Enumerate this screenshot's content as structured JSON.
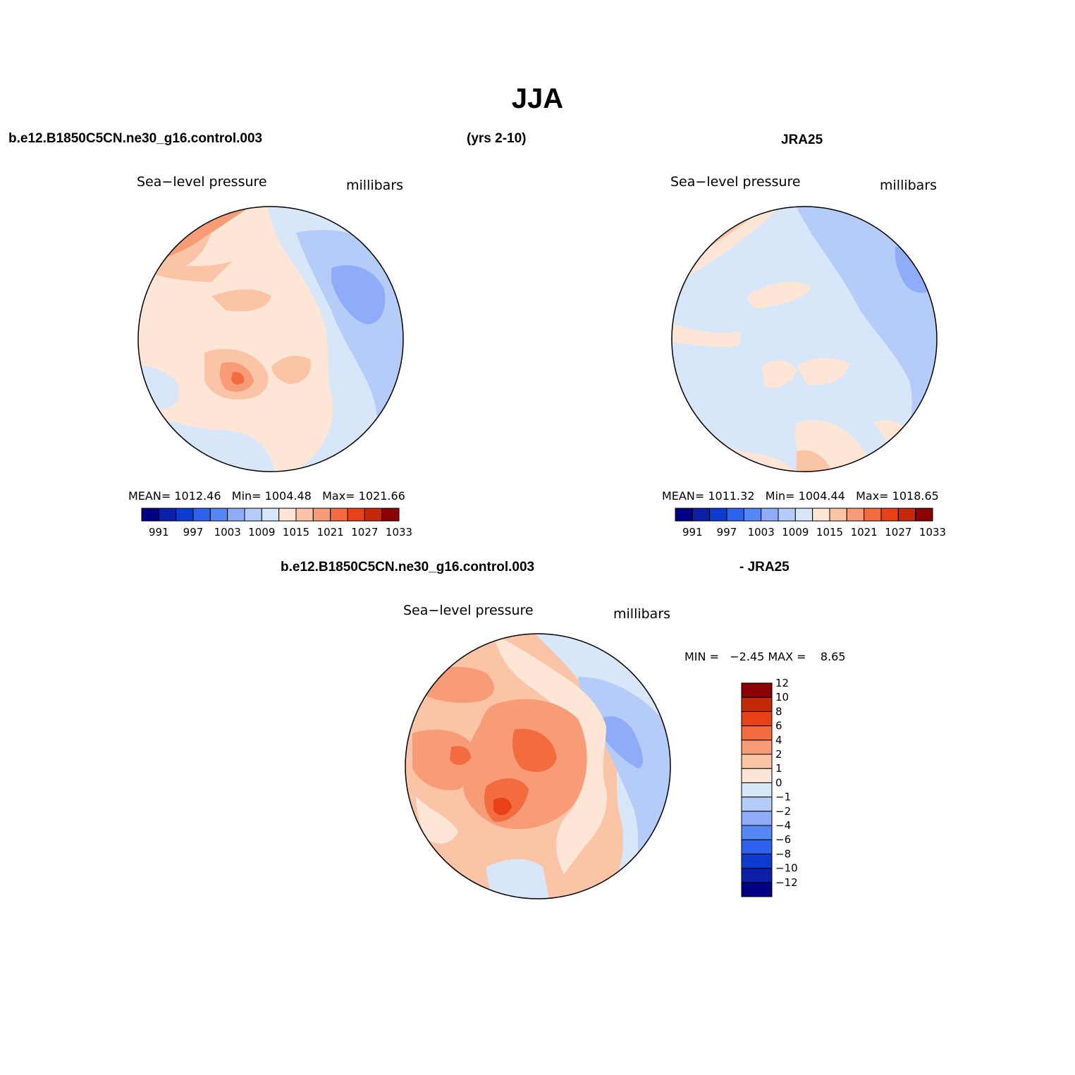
{
  "title": "JJA",
  "header": {
    "case_name": "b.e12.B1850C5CN.ne30_g16.control.003",
    "years": "(yrs 2-10)",
    "obs_name": "JRA25"
  },
  "panels": {
    "model": {
      "variable": "Sea−level pressure",
      "units": "millibars",
      "stats": {
        "mean_label": "MEAN=",
        "mean": "1012.46",
        "min_label": "Min=",
        "min": "1004.48",
        "max_label": "Max=",
        "max": "1021.66"
      }
    },
    "obs": {
      "variable": "Sea−level pressure",
      "units": "millibars",
      "stats": {
        "mean_label": "MEAN=",
        "mean": "1011.32",
        "min_label": "Min=",
        "min": "1004.44",
        "max_label": "Max=",
        "max": "1018.65"
      }
    },
    "diff": {
      "title_left": "b.e12.B1850C5CN.ne30_g16.control.003",
      "title_right": "- JRA25",
      "variable": "Sea−level pressure",
      "units": "millibars",
      "minmax": "MIN =   −2.45 MAX =    8.65"
    }
  },
  "abs_colorbar": {
    "colors": [
      "#000080",
      "#0a1fa6",
      "#0d3bd0",
      "#2f62ec",
      "#5688f5",
      "#8eacf7",
      "#b6ccf8",
      "#d8e6fa",
      "#fde6d5",
      "#fbc4a6",
      "#f89b77",
      "#f26c40",
      "#e84017",
      "#c42a0a",
      "#8b0000"
    ],
    "tick_labels": [
      "991",
      "997",
      "1003",
      "1009",
      "1015",
      "1021",
      "1027",
      "1033"
    ]
  },
  "diff_colorbar": {
    "colors": [
      "#000080",
      "#0a1fa6",
      "#0d3bd0",
      "#2f62ec",
      "#5688f5",
      "#8eacf7",
      "#b6ccf8",
      "#d8e6fa",
      "#fde6d5",
      "#fbc4a6",
      "#f89b77",
      "#f26c40",
      "#e84017",
      "#c42a0a",
      "#8b0000"
    ],
    "tick_labels": [
      "−12",
      "−10",
      "−8",
      "−6",
      "−4",
      "−2",
      "−1",
      "0",
      "1",
      "2",
      "4",
      "6",
      "8",
      "10",
      "12"
    ]
  },
  "field_colors": {
    "blue_dark": "#8eacf7",
    "blue_mid": "#b6ccf8",
    "blue_light": "#d8e6fa",
    "cream": "#fde6d5",
    "peach": "#fbc4a6",
    "salmon": "#f89b77",
    "orange": "#f26c40"
  }
}
